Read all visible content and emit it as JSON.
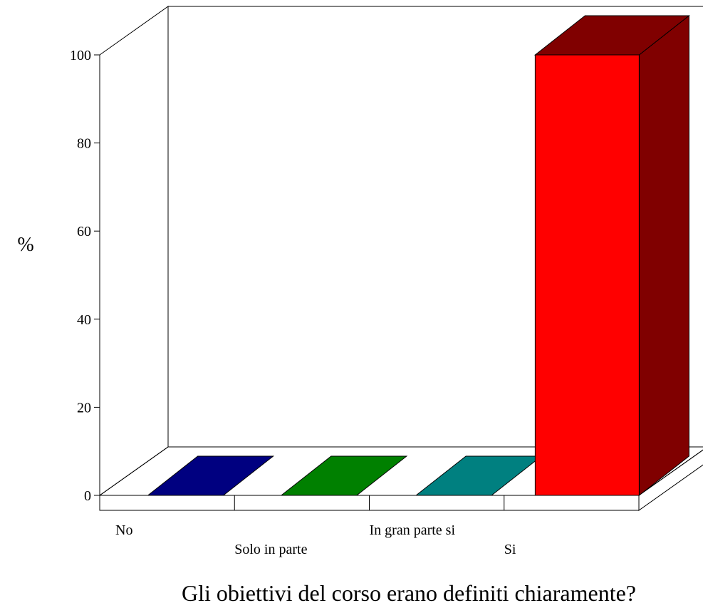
{
  "chart_data": {
    "type": "bar",
    "title": "Gli obiettivi del corso erano definiti chiaramente?",
    "ylabel": "%",
    "xlabel": "",
    "ylim": [
      0,
      100
    ],
    "yticks": [
      0,
      20,
      40,
      60,
      80,
      100
    ],
    "categories": [
      "No",
      "Solo in parte",
      "In gran parte si",
      "Si"
    ],
    "values": [
      0,
      0,
      0,
      100
    ],
    "colors": [
      "#000080",
      "#008000",
      "#008080",
      "#ff0000"
    ],
    "side_colors": [
      "#000040",
      "#004000",
      "#004040",
      "#800000"
    ],
    "style": "3d",
    "grid": false,
    "legend": "none"
  }
}
